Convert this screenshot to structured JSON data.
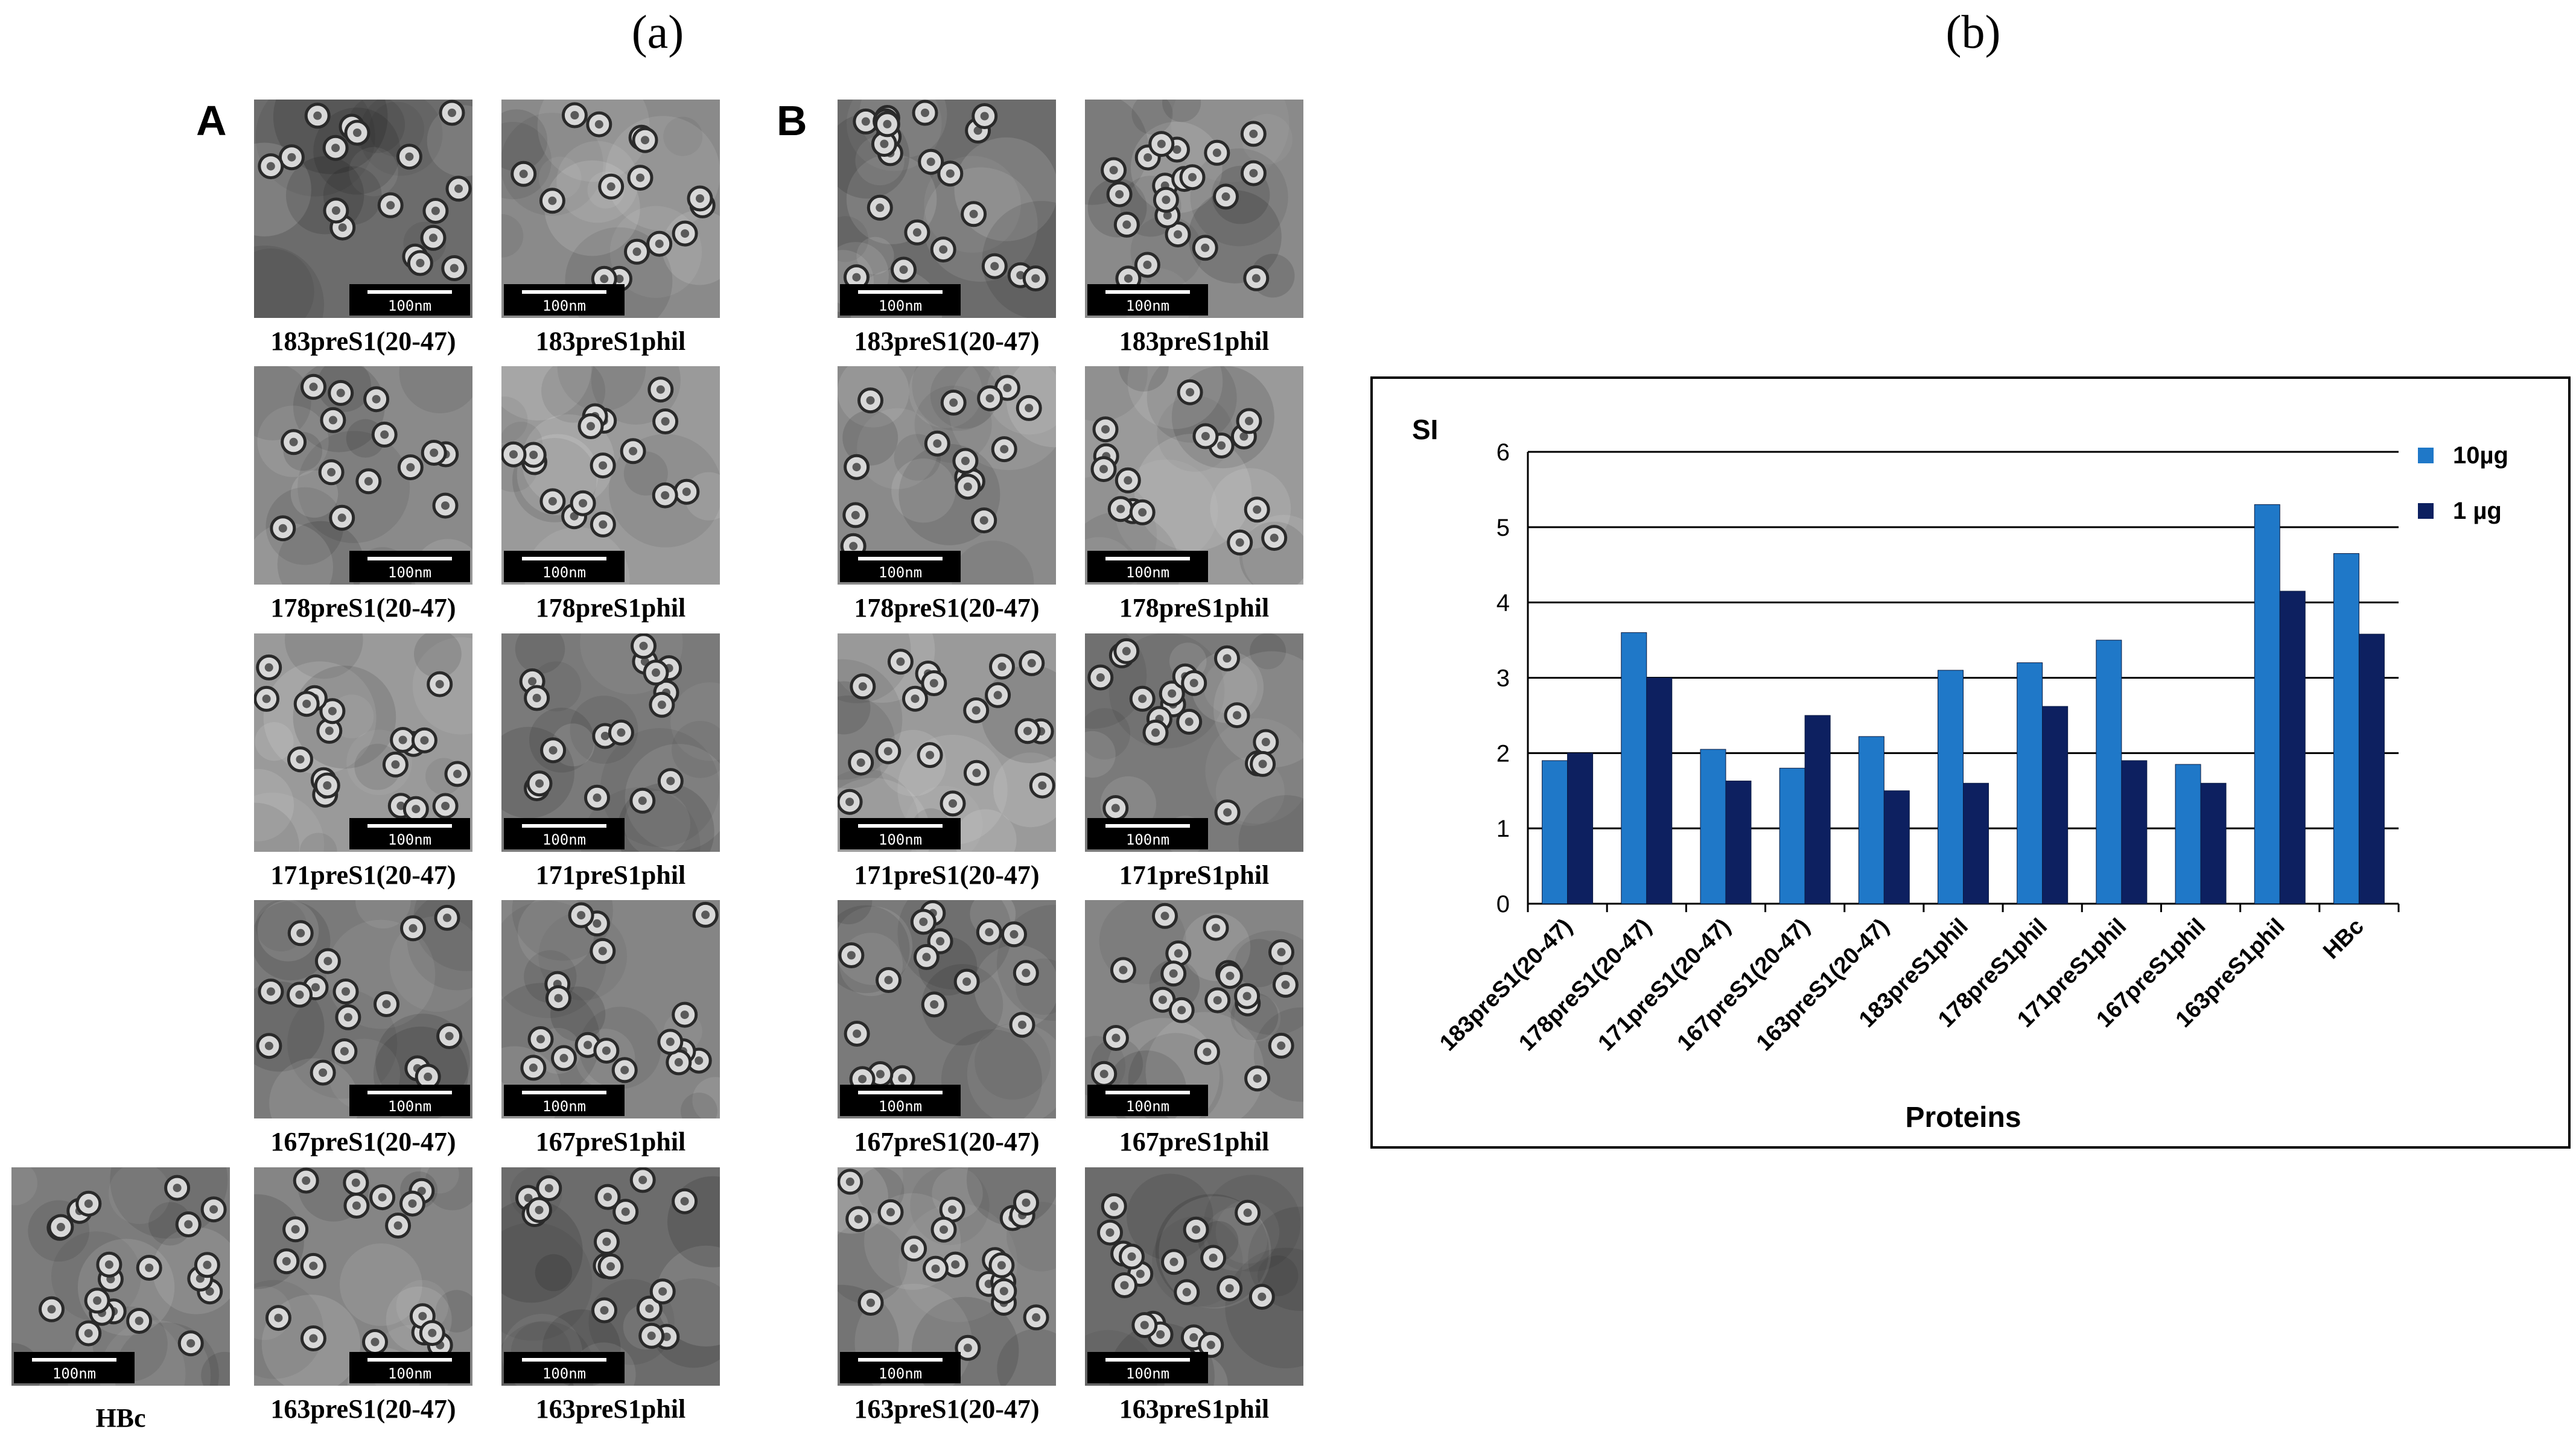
{
  "panels": {
    "a_label": "(a)",
    "b_label": "(b)"
  },
  "micrographs": {
    "group_A": "A",
    "group_B": "B",
    "scale_bar_text": "100nm",
    "hbc_caption": "HBc",
    "captions": [
      "183preS1(20-47)",
      "183preS1phil",
      "178preS1(20-47)",
      "178preS1phil",
      "171preS1(20-47)",
      "171preS1phil",
      "167preS1(20-47)",
      "167preS1phil",
      "163preS1(20-47)",
      "163preS1phil"
    ]
  },
  "chart_data": {
    "type": "bar",
    "ylabel": "SI",
    "xlabel": "Proteins",
    "ylim": [
      0,
      6
    ],
    "yticks": [
      0,
      1,
      2,
      3,
      4,
      5,
      6
    ],
    "grid": true,
    "legend_position": "top-right",
    "categories": [
      "183preS1(20-47)",
      "178preS1(20-47)",
      "171preS1(20-47)",
      "167preS1(20-47)",
      "163preS1(20-47)",
      "183preS1phil",
      "178preS1phil",
      "171preS1phil",
      "167preS1phil",
      "163preS1phil",
      "HBc"
    ],
    "series": [
      {
        "name": "10µg",
        "color": "#1f78c8",
        "values": [
          1.9,
          3.6,
          2.05,
          1.8,
          2.22,
          3.1,
          3.2,
          3.5,
          1.85,
          5.3,
          4.65
        ]
      },
      {
        "name": "1 µg",
        "color": "#0d2060",
        "values": [
          2.0,
          3.0,
          1.63,
          2.5,
          1.5,
          1.6,
          2.62,
          1.9,
          1.6,
          4.15,
          3.58
        ]
      }
    ]
  }
}
